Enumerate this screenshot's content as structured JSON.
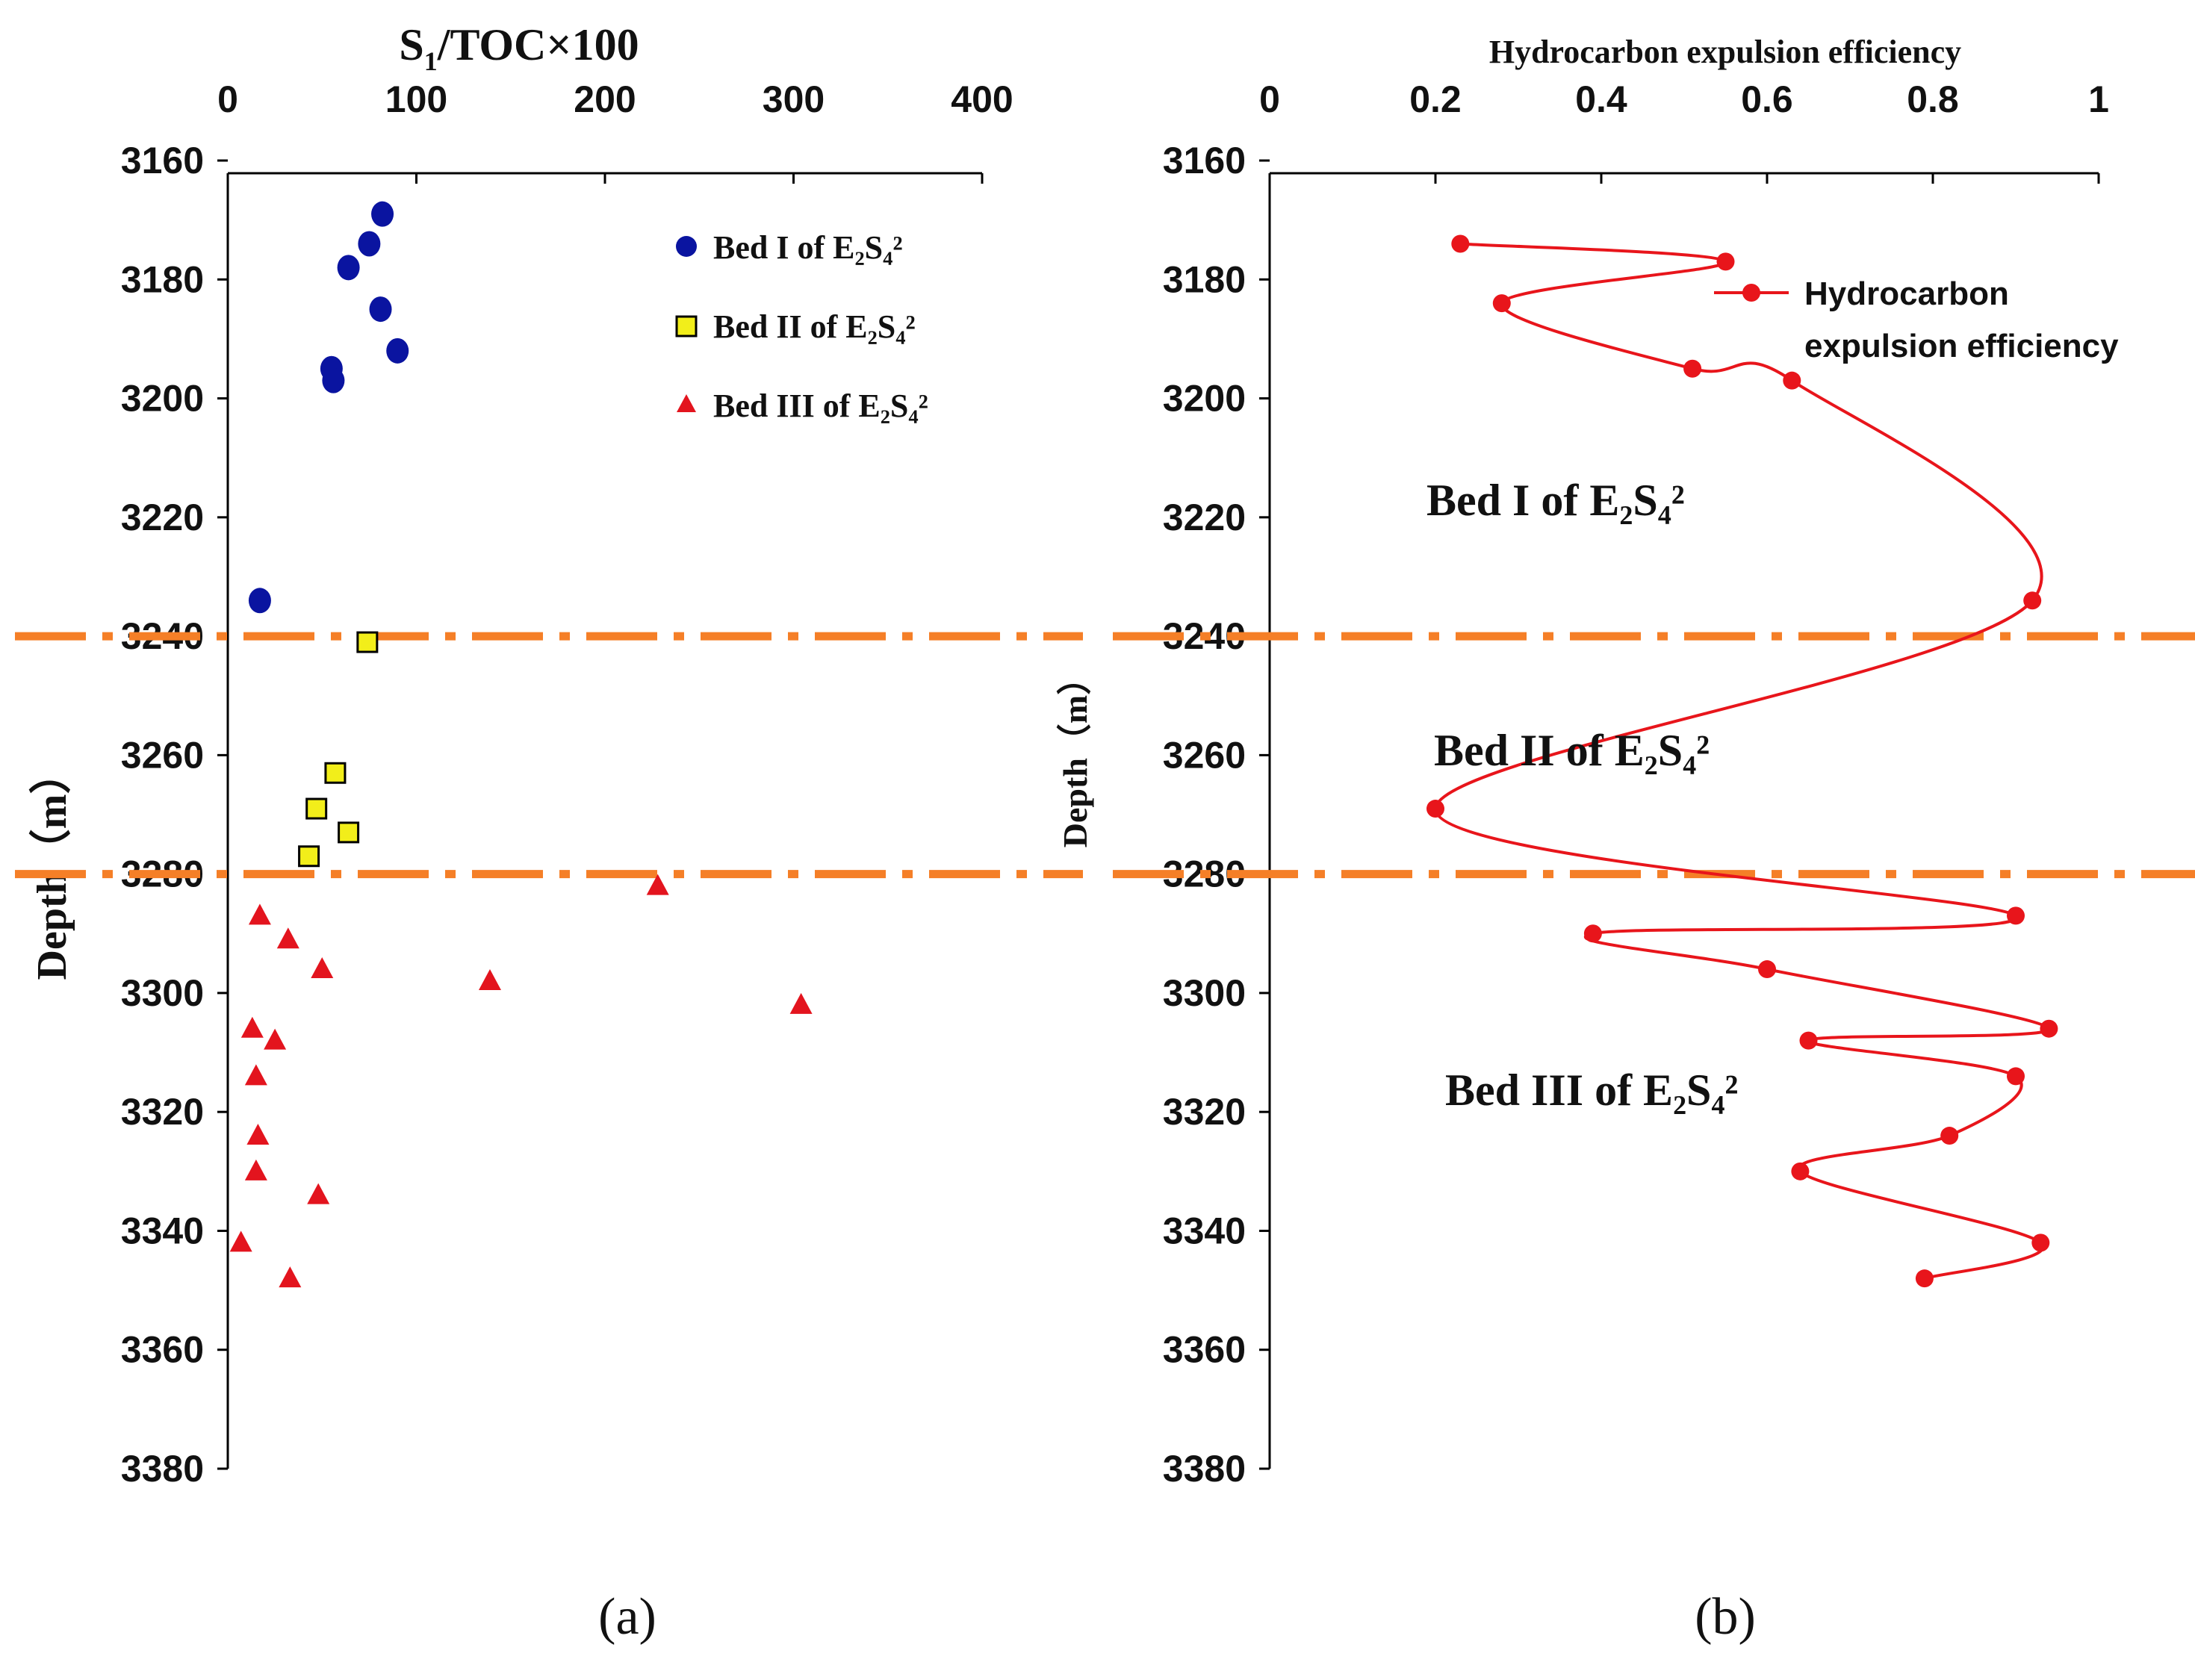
{
  "chart_data": [
    {
      "type": "scatter",
      "panel_label": "(a)",
      "title": "",
      "xlabel": {
        "main": "S",
        "sub": "1",
        "rest": "/TOC×100"
      },
      "ylabel": "Depth（m）",
      "xlim": [
        0,
        400
      ],
      "ylim": [
        3160,
        3380
      ],
      "xticks": [
        0,
        100,
        200,
        300,
        400
      ],
      "yticks": [
        3160,
        3180,
        3200,
        3220,
        3240,
        3260,
        3280,
        3300,
        3320,
        3340,
        3360,
        3380
      ],
      "y_inverted": true,
      "boundaries": [
        3240,
        3280
      ],
      "legend_position": "top-right",
      "series": [
        {
          "name": "Bed I of E₂S₄²",
          "marker": "circle",
          "color": "#0a14a0",
          "points": [
            [
              82,
              3169
            ],
            [
              75,
              3174
            ],
            [
              64,
              3178
            ],
            [
              81,
              3185
            ],
            [
              90,
              3192
            ],
            [
              55,
              3195
            ],
            [
              56,
              3197
            ],
            [
              17,
              3234
            ]
          ]
        },
        {
          "name": "Bed II of E₂S₄²",
          "marker": "square",
          "color": "#f2ee1a",
          "points": [
            [
              74,
              3241
            ],
            [
              57,
              3263
            ],
            [
              47,
              3269
            ],
            [
              64,
              3273
            ],
            [
              43,
              3277
            ]
          ]
        },
        {
          "name": "Bed III of E₂S₄²",
          "marker": "triangle",
          "color": "#e3141e",
          "points": [
            [
              228,
              3282
            ],
            [
              17,
              3287
            ],
            [
              32,
              3291
            ],
            [
              50,
              3296
            ],
            [
              139,
              3298
            ],
            [
              304,
              3302
            ],
            [
              13,
              3306
            ],
            [
              25,
              3308
            ],
            [
              15,
              3314
            ],
            [
              16,
              3324
            ],
            [
              15,
              3330
            ],
            [
              48,
              3334
            ],
            [
              7,
              3342
            ],
            [
              33,
              3348
            ]
          ]
        }
      ]
    },
    {
      "type": "line",
      "panel_label": "(b)",
      "title": "",
      "xlabel": "Hydrocarbon expulsion efficiency",
      "ylabel": "Depth（m）",
      "xlim": [
        0,
        1
      ],
      "ylim": [
        3160,
        3380
      ],
      "xticks": [
        0,
        0.2,
        0.4,
        0.6,
        0.8,
        1
      ],
      "yticks": [
        3160,
        3180,
        3200,
        3220,
        3240,
        3260,
        3280,
        3300,
        3320,
        3340,
        3360,
        3380
      ],
      "y_inverted": true,
      "boundaries": [
        3240,
        3280
      ],
      "legend_position": "top-right",
      "legend_lines": [
        "Hydrocarbon",
        "expulsion efficiency"
      ],
      "series": [
        {
          "name": "Hydrocarbon expulsion efficiency",
          "color": "#e8151b",
          "points": [
            [
              0.23,
              3174
            ],
            [
              0.55,
              3177
            ],
            [
              0.28,
              3184
            ],
            [
              0.51,
              3195
            ],
            [
              0.63,
              3197
            ],
            [
              0.92,
              3234
            ],
            [
              0.2,
              3269
            ],
            [
              0.9,
              3287
            ],
            [
              0.39,
              3290
            ],
            [
              0.6,
              3296
            ],
            [
              0.94,
              3306
            ],
            [
              0.65,
              3308
            ],
            [
              0.9,
              3314
            ],
            [
              0.82,
              3324
            ],
            [
              0.64,
              3330
            ],
            [
              0.93,
              3342
            ],
            [
              0.79,
              3348
            ]
          ]
        }
      ],
      "bed_labels": [
        {
          "text": "Bed I of E₂S₄²"
        },
        {
          "text": "Bed II of E₂S₄²"
        },
        {
          "text": "Bed III of E₂S₄²"
        }
      ]
    }
  ],
  "colors": {
    "boundary": "#f57f27",
    "axis": "#000000"
  }
}
